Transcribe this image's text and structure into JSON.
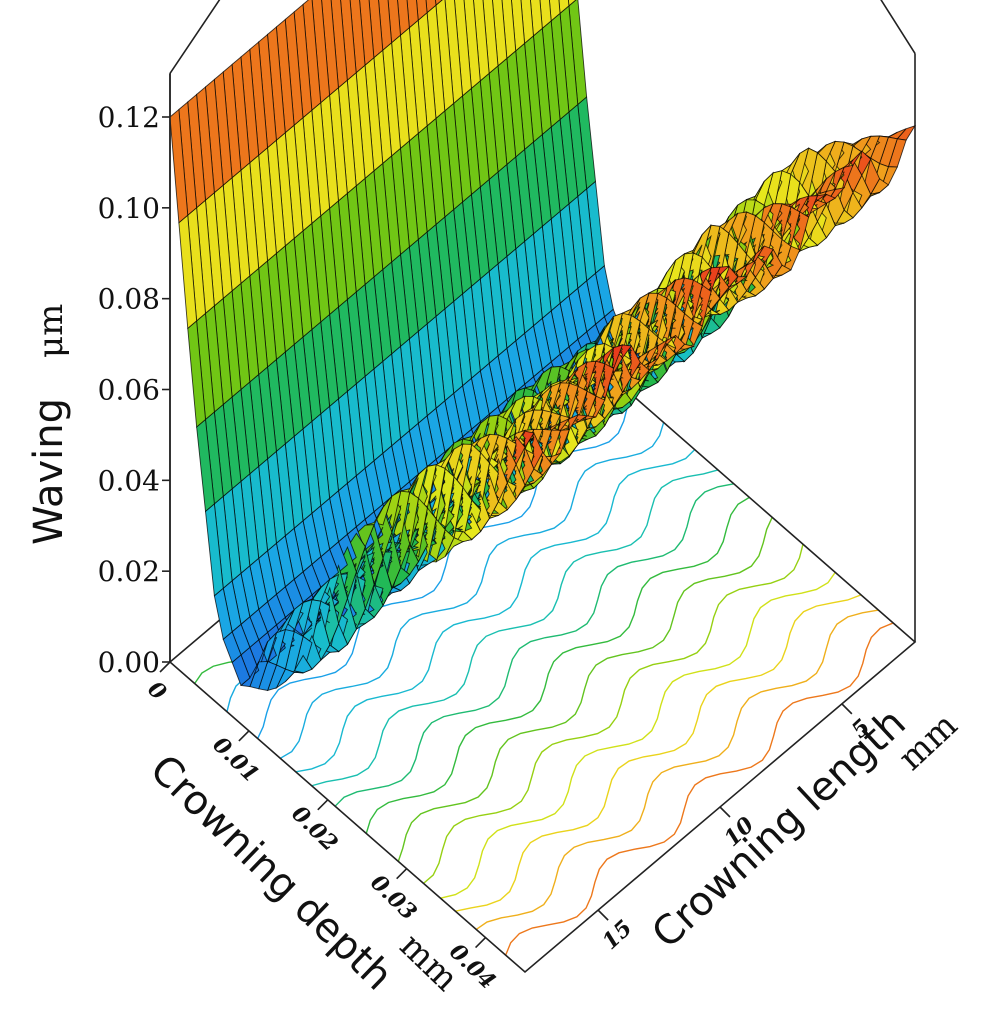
{
  "chart_data": {
    "type": "surface3d",
    "title": "",
    "z_axis": {
      "label": "Waving",
      "unit": "μm",
      "range": [
        0.0,
        0.12
      ],
      "ticks": [
        "0.00",
        "0.02",
        "0.04",
        "0.06",
        "0.08",
        "0.10",
        "0.12"
      ]
    },
    "x_axis": {
      "label": "Crowning depth",
      "unit": "mm",
      "range": [
        0,
        0.045
      ],
      "ticks": [
        "0",
        "0.01",
        "0.02",
        "0.03",
        "0.04"
      ]
    },
    "y_axis": {
      "label": "Crowning length",
      "unit": "mm",
      "range": [
        2,
        18
      ],
      "ticks": [
        "5",
        "10",
        "15"
      ]
    },
    "colormap": [
      "#1f3fd6",
      "#1aa3e8",
      "#18c0c8",
      "#22b84a",
      "#7ac80f",
      "#e8e81c",
      "#f0a41c",
      "#e8281c"
    ],
    "contours_on_base": true,
    "surface_profile": {
      "depth_mm": [
        0,
        0.003,
        0.006,
        0.009,
        0.012,
        0.016,
        0.02,
        0.025,
        0.03,
        0.035,
        0.04,
        0.045
      ],
      "waving_um_min": [
        0.12,
        0.06,
        0.015,
        0.005,
        0.01,
        0.02,
        0.03,
        0.045,
        0.06,
        0.075,
        0.09,
        0.105
      ],
      "waving_um_max": [
        0.12,
        0.065,
        0.02,
        0.012,
        0.025,
        0.04,
        0.055,
        0.07,
        0.085,
        0.1,
        0.11,
        0.12
      ]
    }
  }
}
